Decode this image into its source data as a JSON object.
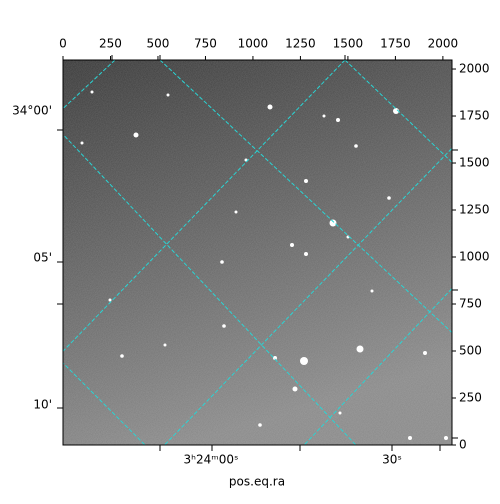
{
  "chart_data": {
    "type": "image",
    "xlabel": "pos.eq.ra",
    "xlim": [
      0,
      2048
    ],
    "ylim": [
      0,
      2048
    ],
    "xticks": [
      0,
      250,
      500,
      750,
      1000,
      1250,
      1500,
      1750,
      2000
    ],
    "yticks": [
      0,
      250,
      500,
      750,
      1000,
      1250,
      1500,
      1750,
      2000
    ],
    "ra_tick_labels": [
      "3ʰ24ᵐ00ˢ",
      "30ˢ"
    ],
    "dec_tick_labels": [
      "34°00'",
      "05'",
      "10'"
    ]
  }
}
